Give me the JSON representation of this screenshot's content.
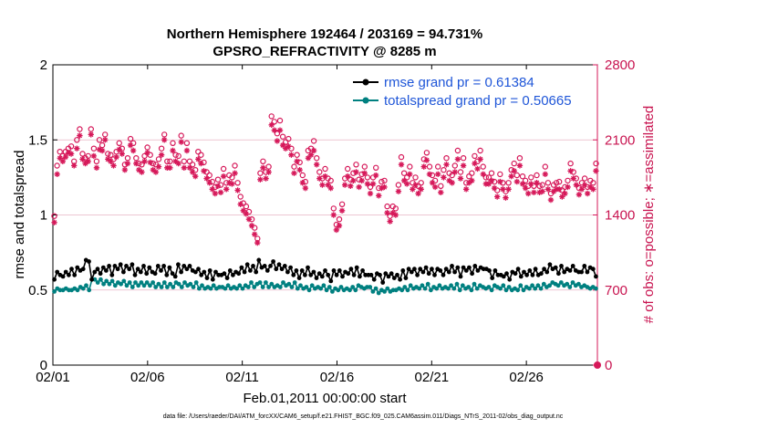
{
  "chart_data": {
    "type": "line",
    "title_line1": "Northern Hemisphere 192464 / 203169 = 94.731%",
    "title_line2": "GPSRO_REFRACTIVITY @ 8285 m",
    "xlabel": "Feb.01,2011 00:00:00 start",
    "ylabel": "rmse and totalspread",
    "ylabel_right": "# of obs: o=possible; ∗=assimilated",
    "footnote": "data file: /Users/raeder/DAI/ATM_forcXX/CAM6_setup/f.e21.FHIST_BGC.f09_025.CAM6assim.011/Diags_NTrS_2011-02/obs_diag_output.nc",
    "xlim": [
      1,
      29.75
    ],
    "ylim": [
      0,
      2
    ],
    "ylim_right": [
      0,
      2800
    ],
    "xticks": [
      1,
      6,
      11,
      16,
      21,
      26
    ],
    "xtick_labels": [
      "02/01",
      "02/06",
      "02/11",
      "02/16",
      "02/21",
      "02/26"
    ],
    "yticks": [
      0,
      0.5,
      1,
      1.5,
      2
    ],
    "ytick_labels": [
      "0",
      "0.5",
      "1",
      "1.5",
      "2"
    ],
    "yticks_right": [
      0,
      700,
      1400,
      2100,
      2800
    ],
    "ytick_labels_right": [
      "0",
      "700",
      "1400",
      "2100",
      "2800"
    ],
    "colors": {
      "rmse": "#000000",
      "spread": "#008080",
      "obs": "#d6195a",
      "legend_text": "#1f56d8",
      "grid": "#e6b3c3"
    },
    "series": [
      {
        "name": "rmse grand pr = 0.61384",
        "axis": "left",
        "values": [
          0.57,
          0.62,
          0.6,
          0.59,
          0.62,
          0.6,
          0.64,
          0.6,
          0.65,
          0.63,
          0.64,
          0.7,
          0.69,
          0.57,
          0.62,
          0.64,
          0.61,
          0.65,
          0.63,
          0.66,
          0.6,
          0.66,
          0.64,
          0.67,
          0.62,
          0.66,
          0.64,
          0.67,
          0.6,
          0.64,
          0.62,
          0.66,
          0.61,
          0.65,
          0.62,
          0.61,
          0.66,
          0.63,
          0.66,
          0.6,
          0.65,
          0.61,
          0.59,
          0.67,
          0.62,
          0.66,
          0.64,
          0.66,
          0.63,
          0.62,
          0.64,
          0.6,
          0.62,
          0.58,
          0.63,
          0.57,
          0.62,
          0.6,
          0.6,
          0.61,
          0.58,
          0.63,
          0.6,
          0.62,
          0.61,
          0.65,
          0.62,
          0.67,
          0.63,
          0.66,
          0.62,
          0.7,
          0.65,
          0.66,
          0.63,
          0.66,
          0.69,
          0.64,
          0.67,
          0.64,
          0.66,
          0.62,
          0.65,
          0.6,
          0.63,
          0.58,
          0.63,
          0.6,
          0.65,
          0.6,
          0.62,
          0.58,
          0.61,
          0.59,
          0.63,
          0.6,
          0.56,
          0.63,
          0.6,
          0.63,
          0.59,
          0.62,
          0.61,
          0.64,
          0.6,
          0.65,
          0.59,
          0.63,
          0.6,
          0.6,
          0.6,
          0.57,
          0.61,
          0.6,
          0.55,
          0.61,
          0.59,
          0.61,
          0.58,
          0.6,
          0.57,
          0.63,
          0.58,
          0.64,
          0.62,
          0.64,
          0.6,
          0.64,
          0.62,
          0.65,
          0.61,
          0.64,
          0.6,
          0.64,
          0.63,
          0.6,
          0.64,
          0.62,
          0.66,
          0.62,
          0.65,
          0.59,
          0.65,
          0.63,
          0.65,
          0.61,
          0.66,
          0.63,
          0.65,
          0.64,
          0.64,
          0.63,
          0.58,
          0.63,
          0.6,
          0.6,
          0.59,
          0.61,
          0.57,
          0.62,
          0.61,
          0.64,
          0.59,
          0.62,
          0.6,
          0.63,
          0.6,
          0.64,
          0.6,
          0.61,
          0.64,
          0.62,
          0.67,
          0.64,
          0.65,
          0.61,
          0.66,
          0.62,
          0.64,
          0.63,
          0.66,
          0.63,
          0.62,
          0.62,
          0.66,
          0.62,
          0.65,
          0.64,
          0.59
        ]
      },
      {
        "name": "totalspread grand pr = 0.50665",
        "axis": "left",
        "values": [
          0.49,
          0.51,
          0.5,
          0.5,
          0.51,
          0.5,
          0.5,
          0.51,
          0.5,
          0.52,
          0.51,
          0.53,
          0.5,
          0.57,
          0.57,
          0.55,
          0.57,
          0.54,
          0.56,
          0.54,
          0.56,
          0.53,
          0.55,
          0.54,
          0.56,
          0.53,
          0.55,
          0.52,
          0.55,
          0.53,
          0.55,
          0.53,
          0.55,
          0.53,
          0.55,
          0.52,
          0.54,
          0.52,
          0.55,
          0.52,
          0.54,
          0.52,
          0.55,
          0.54,
          0.52,
          0.55,
          0.53,
          0.54,
          0.52,
          0.55,
          0.51,
          0.53,
          0.51,
          0.52,
          0.51,
          0.53,
          0.51,
          0.52,
          0.52,
          0.51,
          0.53,
          0.51,
          0.52,
          0.51,
          0.53,
          0.51,
          0.53,
          0.52,
          0.55,
          0.52,
          0.54,
          0.55,
          0.52,
          0.55,
          0.52,
          0.54,
          0.52,
          0.53,
          0.52,
          0.55,
          0.53,
          0.54,
          0.52,
          0.55,
          0.51,
          0.53,
          0.51,
          0.52,
          0.5,
          0.53,
          0.51,
          0.52,
          0.51,
          0.53,
          0.5,
          0.52,
          0.49,
          0.51,
          0.5,
          0.52,
          0.5,
          0.51,
          0.5,
          0.52,
          0.5,
          0.53,
          0.52,
          0.51,
          0.52,
          0.52,
          0.49,
          0.51,
          0.48,
          0.5,
          0.49,
          0.51,
          0.49,
          0.5,
          0.5,
          0.51,
          0.5,
          0.52,
          0.5,
          0.53,
          0.51,
          0.52,
          0.51,
          0.53,
          0.51,
          0.54,
          0.5,
          0.52,
          0.51,
          0.53,
          0.51,
          0.52,
          0.51,
          0.53,
          0.51,
          0.54,
          0.5,
          0.53,
          0.51,
          0.52,
          0.5,
          0.54,
          0.51,
          0.53,
          0.52,
          0.51,
          0.52,
          0.5,
          0.53,
          0.52,
          0.51,
          0.53,
          0.5,
          0.52,
          0.5,
          0.51,
          0.5,
          0.53,
          0.5,
          0.52,
          0.51,
          0.53,
          0.51,
          0.53,
          0.51,
          0.54,
          0.52,
          0.53,
          0.55,
          0.54,
          0.53,
          0.55,
          0.53,
          0.54,
          0.52,
          0.55,
          0.53,
          0.54,
          0.52,
          0.53,
          0.52,
          0.51,
          0.52,
          0.51
        ]
      },
      {
        "name": "obs possible",
        "axis": "right",
        "marker": "o",
        "values": [
          1390,
          1860,
          1990,
          1950,
          1990,
          2020,
          2040,
          1900,
          2100,
          2200,
          1970,
          1930,
          1950,
          2200,
          2020,
          1900,
          2100,
          2050,
          2150,
          1970,
          1960,
          1920,
          1990,
          2070,
          2020,
          1870,
          1930,
          2110,
          2070,
          1930,
          1880,
          1870,
          1950,
          2030,
          1960,
          1880,
          1870,
          1920,
          2020,
          2150,
          1900,
          1900,
          2070,
          1960,
          1950,
          2140,
          1900,
          2070,
          1900,
          1870,
          1820,
          1990,
          1960,
          1890,
          1800,
          1770,
          1710,
          1660,
          1730,
          1680,
          1830,
          1700,
          1770,
          1750,
          1860,
          1700,
          1570,
          1510,
          1480,
          1430,
          1360,
          1280,
          1180,
          1790,
          1900,
          1800,
          1850,
          2320,
          2270,
          2160,
          2280,
          2130,
          2080,
          2110,
          2020,
          1850,
          1960,
          1890,
          1770,
          1710,
          2000,
          2020,
          2090,
          1930,
          1800,
          1740,
          1830,
          1740,
          1720,
          1460,
          1310,
          1360,
          1500,
          1740,
          1830,
          1730,
          1790,
          1870,
          1730,
          1780,
          1850,
          1750,
          1660,
          1750,
          1840,
          1650,
          1710,
          1720,
          1480,
          1390,
          1480,
          1460,
          1680,
          1940,
          1790,
          1750,
          1850,
          1700,
          1750,
          1670,
          1700,
          1920,
          1980,
          1850,
          1770,
          1720,
          1850,
          1670,
          1820,
          1930,
          1790,
          1770,
          1860,
          2000,
          1800,
          1930,
          1700,
          1760,
          1790,
          1950,
          1900,
          2000,
          1850,
          1750,
          1750,
          1790,
          1710,
          1630,
          1780,
          1700,
          1620,
          1700,
          1820,
          1880,
          1770,
          1930,
          1760,
          1720,
          1670,
          1750,
          1670,
          1770,
          1670,
          1680,
          1850,
          1700,
          1600,
          1680,
          1700,
          1710,
          1630,
          1660,
          1720,
          1880,
          1800,
          1740,
          1650,
          1700,
          1740,
          1660,
          1720,
          1700,
          1880
        ]
      },
      {
        "name": "obs assimilated",
        "axis": "right",
        "marker": "*",
        "values": [
          1330,
          1780,
          1930,
          1900,
          1940,
          1980,
          1970,
          1860,
          2020,
          2140,
          1920,
          1880,
          1900,
          2150,
          1950,
          1840,
          2010,
          2000,
          2100,
          1920,
          1900,
          1860,
          1940,
          2010,
          1970,
          1820,
          1880,
          2050,
          2000,
          1880,
          1820,
          1800,
          1900,
          1980,
          1890,
          1820,
          1800,
          1850,
          1960,
          2100,
          1840,
          1840,
          2000,
          1900,
          1880,
          2080,
          1840,
          2000,
          1840,
          1800,
          1760,
          1920,
          1880,
          1810,
          1740,
          1700,
          1640,
          1600,
          1670,
          1610,
          1760,
          1640,
          1700,
          1690,
          1790,
          1630,
          1500,
          1440,
          1410,
          1360,
          1300,
          1220,
          1140,
          1730,
          1840,
          1740,
          1800,
          2240,
          2190,
          2090,
          2190,
          2050,
          2020,
          2040,
          1960,
          1790,
          1900,
          1820,
          1700,
          1650,
          1930,
          1960,
          2000,
          1870,
          1740,
          1680,
          1760,
          1680,
          1650,
          1400,
          1260,
          1300,
          1440,
          1680,
          1760,
          1670,
          1720,
          1800,
          1660,
          1720,
          1790,
          1690,
          1600,
          1690,
          1770,
          1580,
          1650,
          1660,
          1420,
          1340,
          1420,
          1400,
          1620,
          1870,
          1720,
          1690,
          1780,
          1640,
          1680,
          1600,
          1640,
          1850,
          1910,
          1780,
          1700,
          1660,
          1780,
          1610,
          1750,
          1870,
          1720,
          1700,
          1800,
          1920,
          1740,
          1860,
          1640,
          1700,
          1720,
          1880,
          1830,
          1920,
          1780,
          1690,
          1690,
          1720,
          1650,
          1570,
          1710,
          1640,
          1560,
          1640,
          1760,
          1810,
          1710,
          1860,
          1690,
          1650,
          1600,
          1690,
          1610,
          1700,
          1610,
          1620,
          1780,
          1640,
          1540,
          1620,
          1640,
          1640,
          1570,
          1600,
          1660,
          1810,
          1740,
          1680,
          1590,
          1640,
          1680,
          1600,
          1660,
          1640,
          1810
        ]
      }
    ],
    "legend": {
      "location": "top-right",
      "entries": [
        "rmse grand pr = 0.61384",
        "totalspread grand pr = 0.50665"
      ]
    }
  }
}
